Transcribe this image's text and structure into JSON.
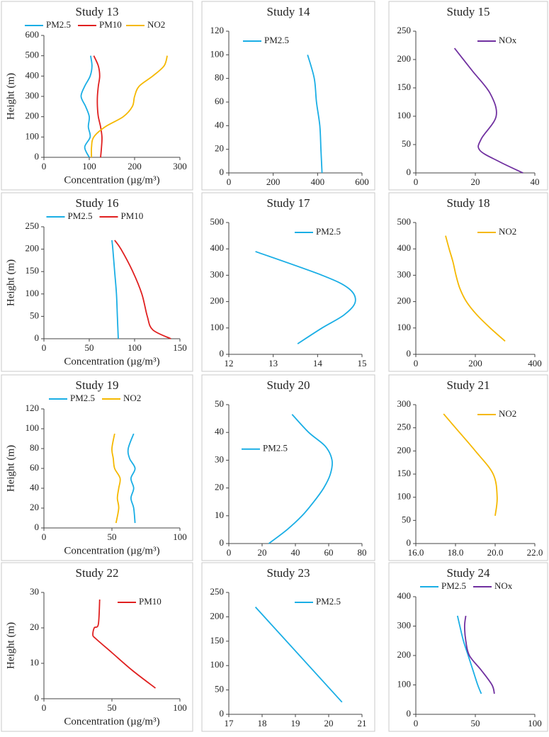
{
  "chart_data": [
    {
      "type": "line",
      "title": "Study 13",
      "y_label": "Height (m)",
      "x_label": "Concentration (µg/m³)",
      "legend": "top",
      "xlim": [
        0,
        300
      ],
      "xticks": [
        0,
        100,
        200,
        300
      ],
      "ylim": [
        0,
        600
      ],
      "yticks": [
        0,
        100,
        200,
        300,
        400,
        500,
        600
      ],
      "series": [
        {
          "name": "PM2.5",
          "color": "#1aaee5",
          "x": [
            100,
            90,
            102,
            98,
            100,
            92,
            82,
            90,
            102,
            106,
            103
          ],
          "values": [
            0,
            50,
            100,
            150,
            200,
            250,
            300,
            350,
            400,
            450,
            500
          ]
        },
        {
          "name": "PM10",
          "color": "#e02020",
          "x": [
            125,
            127,
            128,
            125,
            120,
            118,
            118,
            120,
            123,
            120,
            110
          ],
          "values": [
            0,
            50,
            100,
            150,
            200,
            250,
            300,
            350,
            400,
            450,
            500
          ]
        },
        {
          "name": "NO2",
          "color": "#f5b800",
          "x": [
            105,
            105,
            110,
            135,
            175,
            195,
            200,
            210,
            240,
            265,
            272
          ],
          "values": [
            0,
            50,
            100,
            150,
            200,
            250,
            300,
            350,
            400,
            450,
            500
          ]
        }
      ]
    },
    {
      "type": "line",
      "title": "Study 14",
      "legend": "upper left",
      "xlim": [
        0,
        600
      ],
      "xticks": [
        0,
        200,
        400,
        600
      ],
      "ylim": [
        0,
        120
      ],
      "yticks": [
        0,
        20,
        40,
        60,
        80,
        100,
        120
      ],
      "series": [
        {
          "name": "PM2.5",
          "color": "#1aaee5",
          "x": [
            420,
            415,
            410,
            395,
            385,
            355
          ],
          "values": [
            0,
            20,
            40,
            60,
            80,
            100
          ]
        }
      ]
    },
    {
      "type": "line",
      "title": "Study 15",
      "legend": "upper right",
      "xlim": [
        0,
        40
      ],
      "xticks": [
        0,
        20,
        40
      ],
      "ylim": [
        0,
        250
      ],
      "yticks": [
        0,
        50,
        100,
        150,
        200,
        250
      ],
      "series": [
        {
          "name": "NOx",
          "color": "#7030a0",
          "x": [
            36,
            28,
            21.5,
            22,
            27,
            25,
            19,
            13
          ],
          "values": [
            0,
            20,
            40,
            60,
            100,
            140,
            180,
            220
          ]
        }
      ]
    },
    {
      "type": "line",
      "title": "Study 16",
      "y_label": "Height (m)",
      "x_label": "Concentration (µg/m³)",
      "legend": "top",
      "xlim": [
        0,
        150
      ],
      "xticks": [
        0,
        50,
        100,
        150
      ],
      "ylim": [
        0,
        250
      ],
      "yticks": [
        0,
        50,
        100,
        150,
        200,
        250
      ],
      "series": [
        {
          "name": "PM2.5",
          "color": "#1aaee5",
          "x": [
            82,
            81,
            80,
            78,
            76,
            75
          ],
          "values": [
            0,
            50,
            100,
            150,
            200,
            220
          ]
        },
        {
          "name": "PM10",
          "color": "#e02020",
          "x": [
            140,
            120,
            114,
            108,
            98,
            85,
            78
          ],
          "values": [
            0,
            20,
            50,
            100,
            150,
            200,
            220
          ]
        }
      ]
    },
    {
      "type": "line",
      "title": "Study 17",
      "legend": "upper right",
      "xlim": [
        12,
        15
      ],
      "xticks": [
        12,
        13,
        14,
        15
      ],
      "ylim": [
        0,
        500
      ],
      "yticks": [
        0,
        100,
        200,
        300,
        400,
        500
      ],
      "series": [
        {
          "name": "PM2.5",
          "color": "#1aaee5",
          "x": [
            13.55,
            14.1,
            14.6,
            14.85,
            14.7,
            14.1,
            12.6
          ],
          "values": [
            40,
            100,
            150,
            200,
            250,
            300,
            390
          ]
        }
      ]
    },
    {
      "type": "line",
      "title": "Study 18",
      "legend": "upper right",
      "xlim": [
        0,
        400
      ],
      "xticks": [
        0,
        200,
        400
      ],
      "ylim": [
        0,
        500
      ],
      "yticks": [
        0,
        100,
        200,
        300,
        400,
        500
      ],
      "series": [
        {
          "name": "NO2",
          "color": "#f5b800",
          "x": [
            300,
            250,
            205,
            170,
            148,
            135,
            125,
            112,
            100
          ],
          "values": [
            50,
            100,
            150,
            200,
            250,
            300,
            350,
            400,
            450
          ]
        }
      ]
    },
    {
      "type": "line",
      "title": "Study 19",
      "y_label": "Height (m)",
      "x_label": "Concentration (µg/m³)",
      "legend": "top",
      "xlim": [
        0,
        100
      ],
      "xticks": [
        0,
        50,
        100
      ],
      "ylim": [
        0,
        120
      ],
      "yticks": [
        0,
        20,
        40,
        60,
        80,
        100,
        120
      ],
      "series": [
        {
          "name": "PM2.5",
          "color": "#1aaee5",
          "x": [
            67,
            66,
            64,
            66,
            64,
            67,
            63,
            62,
            66
          ],
          "values": [
            5,
            20,
            30,
            40,
            50,
            60,
            70,
            80,
            95
          ]
        },
        {
          "name": "NO2",
          "color": "#f5b800",
          "x": [
            53,
            55,
            54,
            55,
            56,
            52,
            51,
            50,
            52
          ],
          "values": [
            5,
            20,
            30,
            40,
            50,
            60,
            70,
            80,
            95
          ]
        }
      ]
    },
    {
      "type": "line",
      "title": "Study 20",
      "legend": "center left",
      "xlim": [
        0,
        80
      ],
      "xticks": [
        0,
        20,
        40,
        60,
        80
      ],
      "ylim": [
        0,
        50
      ],
      "yticks": [
        0,
        10,
        20,
        30,
        40,
        50
      ],
      "series": [
        {
          "name": "PM2.5",
          "color": "#1aaee5",
          "x": [
            24,
            35,
            44,
            51,
            57,
            61,
            62,
            58,
            48,
            38
          ],
          "values": [
            0,
            5,
            10,
            15,
            20,
            25,
            30,
            35,
            40,
            46.5
          ]
        }
      ]
    },
    {
      "type": "line",
      "title": "Study 21",
      "legend": "upper right",
      "xlim": [
        16,
        22
      ],
      "xticks": [
        {
          "value": 16,
          "label": "16.0"
        },
        {
          "value": 18,
          "label": "18.0"
        },
        {
          "value": 20,
          "label": "20.0"
        },
        {
          "value": 22,
          "label": "22.0"
        }
      ],
      "ylim": [
        0,
        300
      ],
      "yticks": [
        0,
        50,
        100,
        150,
        200,
        250,
        300
      ],
      "series": [
        {
          "name": "NO2",
          "color": "#f5b800",
          "x": [
            20.0,
            20.1,
            19.9,
            19.0,
            18.0,
            17.4
          ],
          "values": [
            60,
            100,
            150,
            200,
            250,
            280
          ]
        }
      ]
    },
    {
      "type": "line",
      "title": "Study 22",
      "y_label": "Height (m)",
      "x_label": "Concentration (µg/m³)",
      "legend": "upper right",
      "xlim": [
        0,
        100
      ],
      "xticks": [
        0,
        50,
        100
      ],
      "ylim": [
        0,
        30
      ],
      "yticks": [
        0,
        10,
        20,
        30
      ],
      "series": [
        {
          "name": "PM10",
          "color": "#e02020",
          "x": [
            82,
            65,
            50,
            38,
            36,
            37,
            40,
            41
          ],
          "values": [
            3,
            8,
            13,
            17,
            18,
            20,
            21,
            28
          ]
        }
      ]
    },
    {
      "type": "line",
      "title": "Study 23",
      "legend": "upper right",
      "xlim": [
        17,
        21
      ],
      "xticks": [
        17,
        18,
        19,
        20,
        21
      ],
      "ylim": [
        0,
        250
      ],
      "yticks": [
        0,
        50,
        100,
        150,
        200,
        250
      ],
      "series": [
        {
          "name": "PM2.5",
          "color": "#1aaee5",
          "x": [
            17.8,
            20.4
          ],
          "values": [
            220,
            25
          ]
        }
      ]
    },
    {
      "type": "line",
      "title": "Study 24",
      "legend": "top",
      "xlim": [
        0,
        100
      ],
      "xticks": [
        0,
        50,
        100
      ],
      "ylim": [
        0,
        400
      ],
      "yticks": [
        0,
        100,
        200,
        300,
        400
      ],
      "series": [
        {
          "name": "PM2.5",
          "color": "#1aaee5",
          "x": [
            55,
            52,
            48,
            44,
            40,
            37,
            35
          ],
          "values": [
            70,
            100,
            150,
            200,
            250,
            300,
            335
          ]
        },
        {
          "name": "NOx",
          "color": "#7030a0",
          "x": [
            66,
            64,
            55,
            45,
            42,
            41,
            42
          ],
          "values": [
            70,
            100,
            150,
            200,
            250,
            300,
            335
          ]
        }
      ]
    }
  ]
}
